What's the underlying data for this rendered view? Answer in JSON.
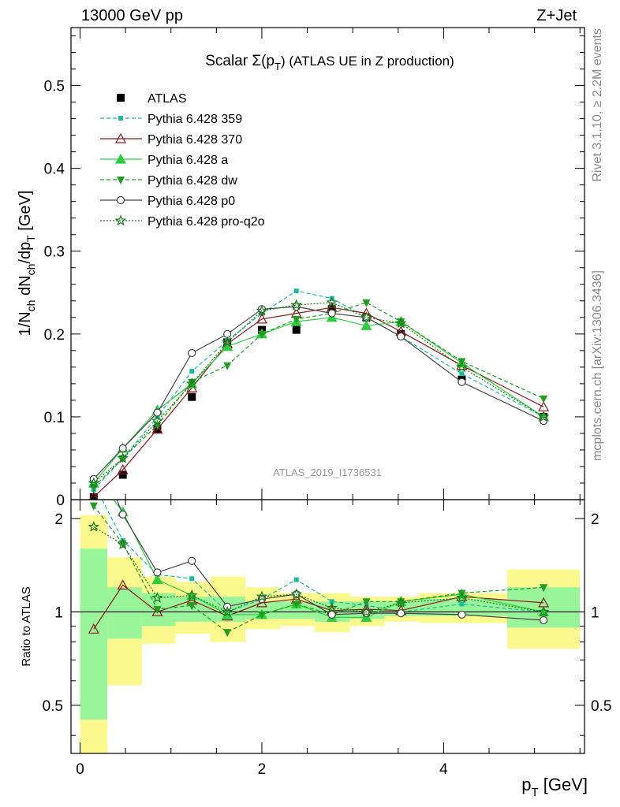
{
  "header": {
    "left": "13000 GeV pp",
    "right": "Z+Jet"
  },
  "side": {
    "top": "Rivet 3.1.10, ≥ 2.2M events",
    "bottom": "mcplots.cern.ch [arXiv:1306.3436]"
  },
  "title": {
    "main": "Scalar Σ(p",
    "sub": "T",
    "end": ") (ATLAS UE in Z production)"
  },
  "watermark": "ATLAS_2019_I1736531",
  "colors": {
    "band_inner": "#99f599",
    "band_outer": "#fbf98d",
    "atlas": "#000000",
    "p359": "#1abc9c",
    "p370": "#8b1a1a",
    "pa": "#2ecc40",
    "pdw": "#1f9e1f",
    "pp0": "#444444",
    "pq2o": "#1a7a1a"
  },
  "chart_data": [
    {
      "type": "line",
      "title": "Scalar Σ(pT) (ATLAS UE in Z production)",
      "xlabel": "p_T [GeV]",
      "ylabel": "1/N_ch dN_ch/dp_T [GeV]",
      "ylim": [
        0,
        0.57
      ],
      "yticks": [
        "0",
        "0.1",
        "0.2",
        "0.3",
        "0.4",
        "0.5"
      ],
      "legend": "top-left",
      "x": [
        0.15,
        0.47,
        0.85,
        1.23,
        1.62,
        2.0,
        2.38,
        2.77,
        3.15,
        3.53,
        4.2,
        5.1
      ],
      "series": [
        {
          "name": "ATLAS",
          "marker": "square",
          "values": [
            0.003,
            0.03,
            0.085,
            0.124,
            0.19,
            0.205,
            0.205,
            0.23,
            0.22,
            0.2,
            0.145,
            0.1
          ]
        },
        {
          "name": "Pythia 6.428 359",
          "marker": "square",
          "values": [
            0.012,
            0.05,
            0.1,
            0.155,
            0.192,
            0.225,
            0.252,
            0.243,
            0.22,
            0.197,
            0.152,
            0.1
          ]
        },
        {
          "name": "Pythia 6.428 370",
          "marker": "triangle-open",
          "values": [
            0.003,
            0.036,
            0.085,
            0.135,
            0.188,
            0.218,
            0.225,
            0.232,
            0.225,
            0.203,
            0.162,
            0.112
          ]
        },
        {
          "name": "Pythia 6.428 a",
          "marker": "triangle",
          "values": [
            0.02,
            0.062,
            0.108,
            0.14,
            0.185,
            0.2,
            0.215,
            0.22,
            0.21,
            0.215,
            0.165,
            0.1
          ]
        },
        {
          "name": "Pythia 6.428 dw",
          "marker": "triangle-down",
          "values": [
            0.015,
            0.05,
            0.09,
            0.142,
            0.162,
            0.2,
            0.218,
            0.225,
            0.238,
            0.215,
            0.167,
            0.122
          ]
        },
        {
          "name": "Pythia 6.428 p0",
          "marker": "circle-open",
          "values": [
            0.025,
            0.062,
            0.105,
            0.177,
            0.2,
            0.23,
            0.233,
            0.225,
            0.22,
            0.197,
            0.142,
            0.095
          ]
        },
        {
          "name": "Pythia 6.428 pro-q2o",
          "marker": "star",
          "values": [
            0.02,
            0.05,
            0.095,
            0.14,
            0.19,
            0.228,
            0.235,
            0.238,
            0.22,
            0.213,
            0.16,
            0.1
          ]
        }
      ]
    },
    {
      "type": "line",
      "xlabel": "p_T [GeV]",
      "ylabel": "Ratio to ATLAS",
      "xlim": [
        -0.1,
        5.55
      ],
      "ylim": [
        0.35,
        2.3
      ],
      "log_y": true,
      "yticks": [
        "0.5",
        "1",
        "2"
      ],
      "xticks": [
        "0",
        "2",
        "4"
      ],
      "band_edges": [
        0,
        0.3,
        0.68,
        1.05,
        1.43,
        1.82,
        2.2,
        2.58,
        2.97,
        3.35,
        3.73,
        4.7,
        5.5
      ],
      "band_inner": [
        [
          0.45,
          1.6
        ],
        [
          0.82,
          1.2
        ],
        [
          0.9,
          1.15
        ],
        [
          0.93,
          1.12
        ],
        [
          0.93,
          1.12
        ],
        [
          0.95,
          1.08
        ],
        [
          0.95,
          1.08
        ],
        [
          0.93,
          1.08
        ],
        [
          0.95,
          1.08
        ],
        [
          0.97,
          1.08
        ],
        [
          0.97,
          1.1
        ],
        [
          0.89,
          1.2
        ]
      ],
      "band_outer": [
        [
          0.3,
          2.05
        ],
        [
          0.58,
          1.5
        ],
        [
          0.79,
          1.3
        ],
        [
          0.85,
          1.25
        ],
        [
          0.8,
          1.3
        ],
        [
          0.88,
          1.2
        ],
        [
          0.9,
          1.15
        ],
        [
          0.86,
          1.15
        ],
        [
          0.9,
          1.12
        ],
        [
          0.93,
          1.12
        ],
        [
          0.92,
          1.15
        ],
        [
          0.76,
          1.37
        ]
      ],
      "x": [
        0.15,
        0.47,
        0.85,
        1.23,
        1.62,
        2.0,
        2.38,
        2.77,
        3.15,
        3.53,
        4.2,
        5.1
      ],
      "series": [
        {
          "name": "Pythia 6.428 359",
          "values": [
            2.6,
            1.7,
            1.32,
            1.28,
            1.0,
            1.1,
            1.27,
            1.08,
            1.05,
            1.0,
            1.06,
            1.0
          ]
        },
        {
          "name": "Pythia 6.428 370",
          "values": [
            0.88,
            1.22,
            1.0,
            1.09,
            0.97,
            1.07,
            1.1,
            1.01,
            1.02,
            1.01,
            1.12,
            1.07
          ]
        },
        {
          "name": "Pythia 6.428 a",
          "values": [
            2.8,
            2.1,
            1.27,
            1.13,
            0.98,
            0.98,
            1.06,
            0.96,
            0.96,
            1.08,
            1.14,
            1.0
          ]
        },
        {
          "name": "Pythia 6.428 dw",
          "values": [
            2.2,
            1.66,
            1.02,
            1.05,
            0.86,
            0.98,
            1.06,
            0.98,
            1.08,
            1.08,
            1.15,
            1.2
          ]
        },
        {
          "name": "Pythia 6.428 p0",
          "values": [
            3.5,
            2.06,
            1.34,
            1.46,
            1.04,
            1.1,
            1.14,
            0.98,
            0.99,
            0.99,
            0.98,
            0.94
          ]
        },
        {
          "name": "Pythia 6.428 pro-q2o",
          "values": [
            1.88,
            1.65,
            1.11,
            1.13,
            1.0,
            1.12,
            1.14,
            1.03,
            1.0,
            1.07,
            1.11,
            1.0
          ]
        }
      ]
    }
  ]
}
